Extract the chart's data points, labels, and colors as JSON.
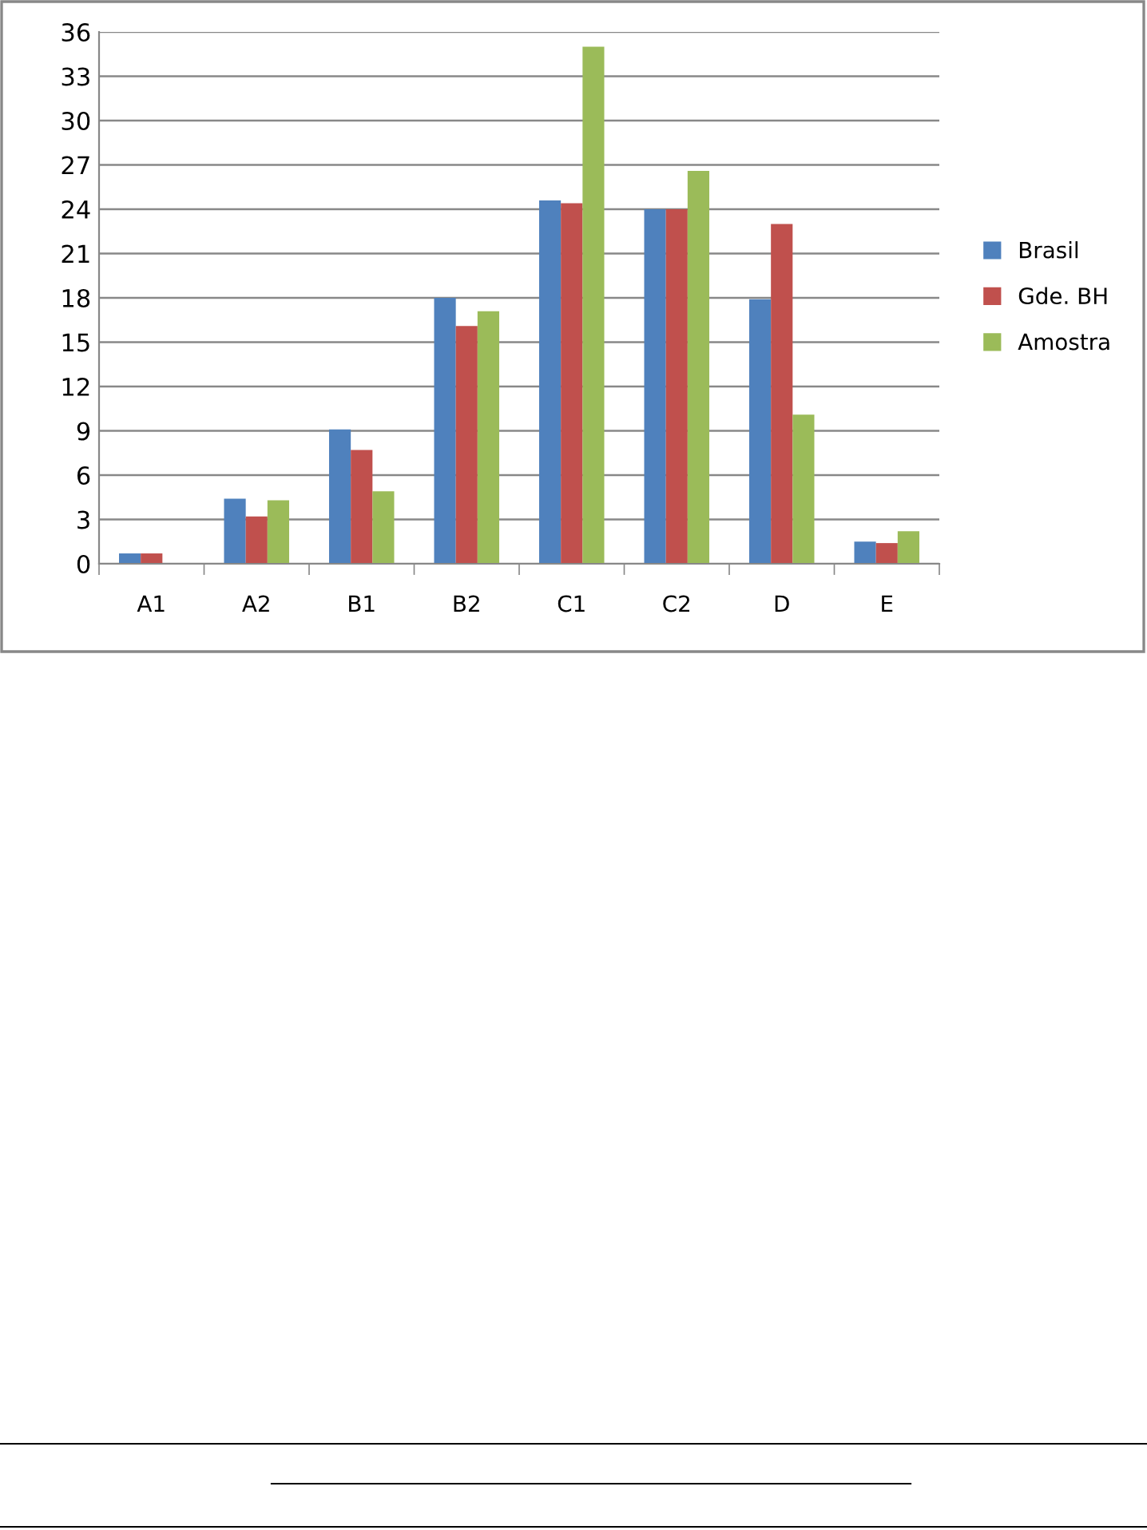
{
  "chart_data": {
    "type": "bar",
    "categories": [
      "A1",
      "A2",
      "B1",
      "B2",
      "C1",
      "C2",
      "D",
      "E"
    ],
    "series": [
      {
        "name": "Brasil",
        "color": "#4f81bd",
        "values": [
          0.7,
          4.4,
          9.1,
          18.0,
          24.6,
          24.0,
          17.9,
          1.5
        ]
      },
      {
        "name": "Gde. BH",
        "color": "#c0504d",
        "values": [
          0.7,
          3.2,
          7.7,
          16.1,
          24.4,
          24.0,
          23.0,
          1.4
        ]
      },
      {
        "name": "Amostra",
        "color": "#9bbb59",
        "values": [
          0,
          4.3,
          4.9,
          17.1,
          35.0,
          26.6,
          10.1,
          2.2
        ]
      }
    ],
    "ylim": [
      0,
      36
    ],
    "yticks": [
      0,
      3,
      6,
      9,
      12,
      15,
      18,
      21,
      24,
      27,
      30,
      33,
      36
    ],
    "grid": "y",
    "legend": "right"
  }
}
